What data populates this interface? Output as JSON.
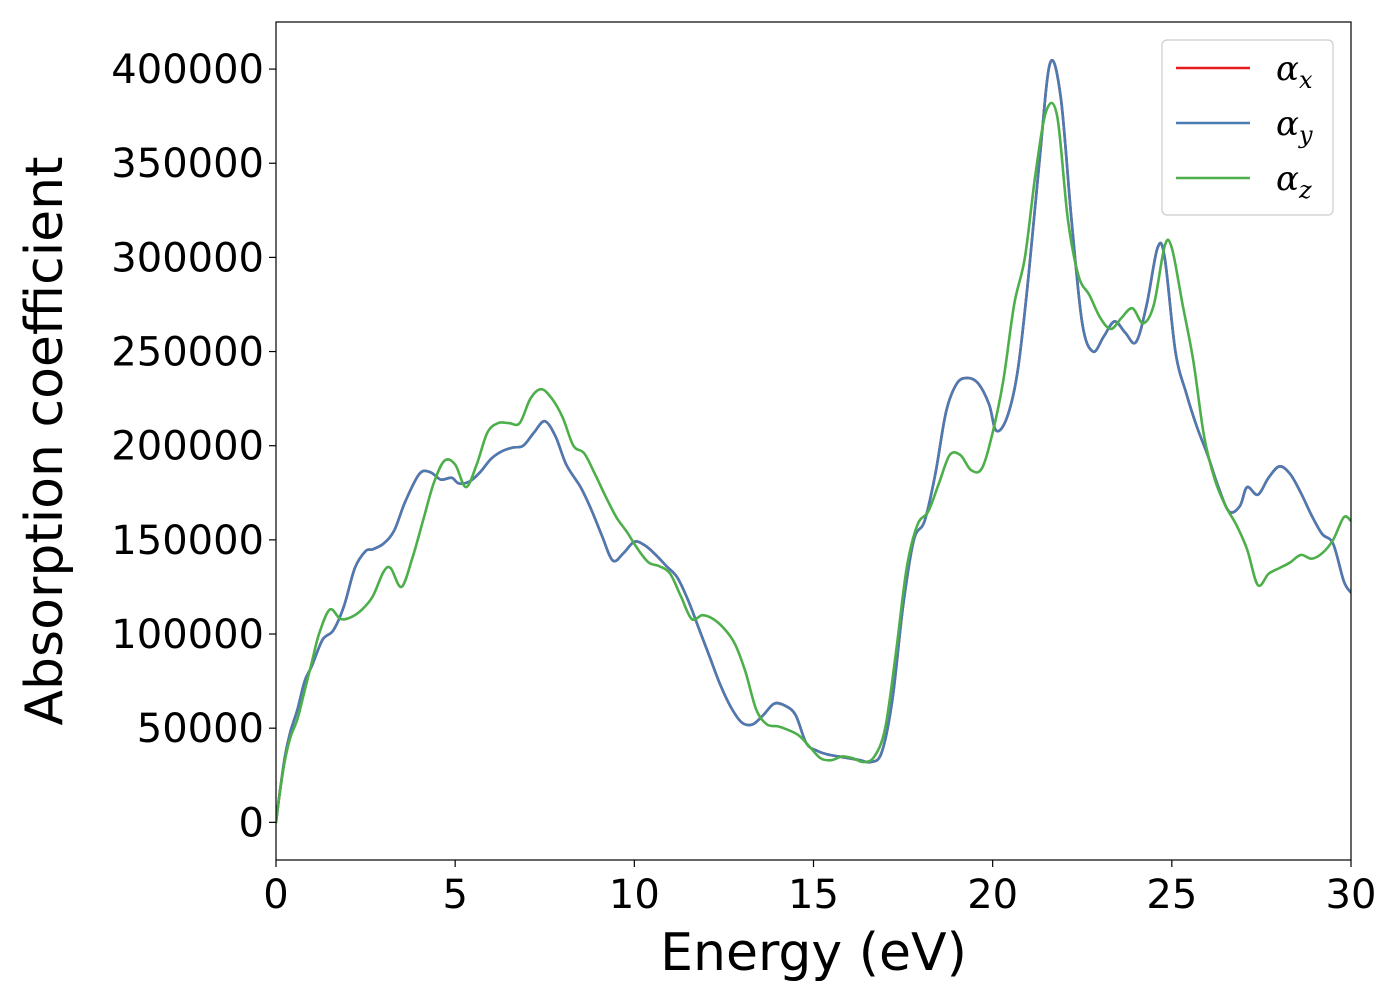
{
  "chart_data": {
    "type": "line",
    "title": "",
    "xlabel": "Energy (eV)",
    "ylabel": "Absorption coefficient",
    "xlim": [
      0,
      30
    ],
    "ylim": [
      -20000,
      425000
    ],
    "xticks": [
      0,
      5,
      10,
      15,
      20,
      25,
      30
    ],
    "yticks": [
      0,
      50000,
      100000,
      150000,
      200000,
      250000,
      300000,
      350000,
      400000
    ],
    "grid": false,
    "legend_position": "top-right",
    "series": [
      {
        "name": "α_x",
        "label_main": "α",
        "label_sub": "x",
        "color": "#e41a1c",
        "x": [
          0,
          0.1,
          0.25,
          0.4,
          0.6,
          0.8,
          1.0,
          1.3,
          1.6,
          1.9,
          2.2,
          2.5,
          2.7,
          3.0,
          3.3,
          3.6,
          4.0,
          4.3,
          4.6,
          4.9,
          5.1,
          5.4,
          5.7,
          6.0,
          6.3,
          6.6,
          6.9,
          7.2,
          7.5,
          7.8,
          8.1,
          8.5,
          8.8,
          9.1,
          9.4,
          9.7,
          10.0,
          10.3,
          10.6,
          10.9,
          11.2,
          11.5,
          11.8,
          12.1,
          12.4,
          12.7,
          13.0,
          13.3,
          13.6,
          13.9,
          14.2,
          14.5,
          14.8,
          15.1,
          15.4,
          15.7,
          16.0,
          16.3,
          16.6,
          16.9,
          17.2,
          17.5,
          17.8,
          18.1,
          18.4,
          18.7,
          19.0,
          19.3,
          19.6,
          19.9,
          20.1,
          20.4,
          20.7,
          21.0,
          21.3,
          21.6,
          21.9,
          22.2,
          22.5,
          22.8,
          23.1,
          23.4,
          23.7,
          24.0,
          24.3,
          24.6,
          24.8,
          25.1,
          25.4,
          25.7,
          26.0,
          26.3,
          26.6,
          26.9,
          27.1,
          27.4,
          27.7,
          28.0,
          28.3,
          28.6,
          28.9,
          29.2,
          29.5,
          29.8,
          30.0
        ],
        "y": [
          0,
          15000,
          35000,
          48000,
          60000,
          75000,
          83000,
          97000,
          102000,
          115000,
          135000,
          144000,
          145000,
          148000,
          155000,
          170000,
          185000,
          186000,
          182000,
          183000,
          180000,
          181000,
          186000,
          193000,
          197000,
          199000,
          200000,
          207000,
          213000,
          205000,
          190000,
          178000,
          166000,
          152000,
          139000,
          143000,
          149000,
          147000,
          142000,
          136000,
          130000,
          118000,
          103000,
          88000,
          73000,
          61000,
          53000,
          52000,
          57000,
          63000,
          62000,
          57000,
          42000,
          38000,
          36000,
          35000,
          34000,
          33000,
          32000,
          37000,
          65000,
          115000,
          150000,
          160000,
          185000,
          218000,
          233000,
          236000,
          233000,
          222000,
          208000,
          215000,
          240000,
          290000,
          350000,
          403000,
          385000,
          320000,
          265000,
          250000,
          258000,
          266000,
          260000,
          255000,
          275000,
          305000,
          300000,
          250000,
          228000,
          210000,
          195000,
          178000,
          165000,
          168000,
          178000,
          174000,
          183000,
          189000,
          185000,
          175000,
          163000,
          153000,
          148000,
          128000,
          122000
        ]
      },
      {
        "name": "α_y",
        "label_main": "α",
        "label_sub": "y",
        "color": "#4a7bb3",
        "x": [
          0,
          0.1,
          0.25,
          0.4,
          0.6,
          0.8,
          1.0,
          1.3,
          1.6,
          1.9,
          2.2,
          2.5,
          2.7,
          3.0,
          3.3,
          3.6,
          4.0,
          4.3,
          4.6,
          4.9,
          5.1,
          5.4,
          5.7,
          6.0,
          6.3,
          6.6,
          6.9,
          7.2,
          7.5,
          7.8,
          8.1,
          8.5,
          8.8,
          9.1,
          9.4,
          9.7,
          10.0,
          10.3,
          10.6,
          10.9,
          11.2,
          11.5,
          11.8,
          12.1,
          12.4,
          12.7,
          13.0,
          13.3,
          13.6,
          13.9,
          14.2,
          14.5,
          14.8,
          15.1,
          15.4,
          15.7,
          16.0,
          16.3,
          16.6,
          16.9,
          17.2,
          17.5,
          17.8,
          18.1,
          18.4,
          18.7,
          19.0,
          19.3,
          19.6,
          19.9,
          20.1,
          20.4,
          20.7,
          21.0,
          21.3,
          21.6,
          21.9,
          22.2,
          22.5,
          22.8,
          23.1,
          23.4,
          23.7,
          24.0,
          24.3,
          24.6,
          24.8,
          25.1,
          25.4,
          25.7,
          26.0,
          26.3,
          26.6,
          26.9,
          27.1,
          27.4,
          27.7,
          28.0,
          28.3,
          28.6,
          28.9,
          29.2,
          29.5,
          29.8,
          30.0
        ],
        "y": [
          0,
          15000,
          35000,
          48000,
          60000,
          75000,
          83000,
          97000,
          102000,
          115000,
          135000,
          144000,
          145000,
          148000,
          155000,
          170000,
          185000,
          186000,
          182000,
          183000,
          180000,
          181000,
          186000,
          193000,
          197000,
          199000,
          200000,
          207000,
          213000,
          205000,
          190000,
          178000,
          166000,
          152000,
          139000,
          143000,
          149000,
          147000,
          142000,
          136000,
          130000,
          118000,
          103000,
          88000,
          73000,
          61000,
          53000,
          52000,
          57000,
          63000,
          62000,
          57000,
          42000,
          38000,
          36000,
          35000,
          34000,
          33000,
          32000,
          37000,
          65000,
          115000,
          150000,
          160000,
          185000,
          218000,
          233000,
          236000,
          233000,
          222000,
          208000,
          215000,
          240000,
          290000,
          350000,
          403000,
          385000,
          320000,
          265000,
          250000,
          258000,
          266000,
          260000,
          255000,
          275000,
          305000,
          300000,
          250000,
          228000,
          210000,
          195000,
          178000,
          165000,
          168000,
          178000,
          174000,
          183000,
          189000,
          185000,
          175000,
          163000,
          153000,
          148000,
          128000,
          122000
        ]
      },
      {
        "name": "α_z",
        "label_main": "α",
        "label_sub": "z",
        "color": "#4daf4a",
        "x": [
          0,
          0.1,
          0.25,
          0.4,
          0.6,
          0.8,
          1.0,
          1.2,
          1.5,
          1.8,
          2.1,
          2.4,
          2.7,
          3.0,
          3.2,
          3.5,
          3.8,
          4.1,
          4.4,
          4.7,
          5.0,
          5.3,
          5.6,
          5.9,
          6.2,
          6.5,
          6.8,
          7.1,
          7.4,
          7.7,
          8.0,
          8.3,
          8.6,
          8.9,
          9.2,
          9.5,
          9.8,
          10.1,
          10.4,
          10.7,
          11.0,
          11.3,
          11.6,
          11.9,
          12.2,
          12.5,
          12.8,
          13.1,
          13.4,
          13.7,
          14.0,
          14.3,
          14.6,
          14.9,
          15.2,
          15.5,
          15.8,
          16.1,
          16.4,
          16.7,
          17.0,
          17.3,
          17.6,
          17.9,
          18.2,
          18.5,
          18.8,
          19.1,
          19.4,
          19.7,
          20.0,
          20.3,
          20.6,
          20.9,
          21.2,
          21.5,
          21.8,
          22.1,
          22.4,
          22.7,
          23.0,
          23.3,
          23.6,
          23.9,
          24.2,
          24.5,
          24.8,
          25.0,
          25.3,
          25.6,
          25.9,
          26.2,
          26.5,
          26.8,
          27.1,
          27.4,
          27.7,
          28.0,
          28.3,
          28.6,
          28.9,
          29.2,
          29.5,
          29.8,
          30.0
        ],
        "y": [
          0,
          15000,
          33000,
          45000,
          55000,
          70000,
          85000,
          100000,
          113000,
          108000,
          109000,
          113000,
          120000,
          133000,
          135000,
          125000,
          140000,
          160000,
          180000,
          192000,
          190000,
          178000,
          190000,
          207000,
          212000,
          212000,
          212000,
          225000,
          230000,
          225000,
          215000,
          200000,
          196000,
          185000,
          173000,
          162000,
          154000,
          145000,
          138000,
          136000,
          132000,
          120000,
          108000,
          110000,
          108000,
          103000,
          95000,
          80000,
          60000,
          52000,
          51000,
          49000,
          46000,
          40000,
          34000,
          33000,
          35000,
          34000,
          32000,
          35000,
          50000,
          90000,
          135000,
          158000,
          165000,
          180000,
          195000,
          195000,
          187000,
          188000,
          207000,
          235000,
          275000,
          300000,
          345000,
          378000,
          375000,
          320000,
          290000,
          280000,
          268000,
          262000,
          268000,
          273000,
          265000,
          275000,
          306000,
          305000,
          275000,
          245000,
          205000,
          182000,
          168000,
          158000,
          145000,
          126000,
          132000,
          135000,
          138000,
          142000,
          140000,
          143000,
          150000,
          162000,
          160000
        ]
      }
    ]
  }
}
